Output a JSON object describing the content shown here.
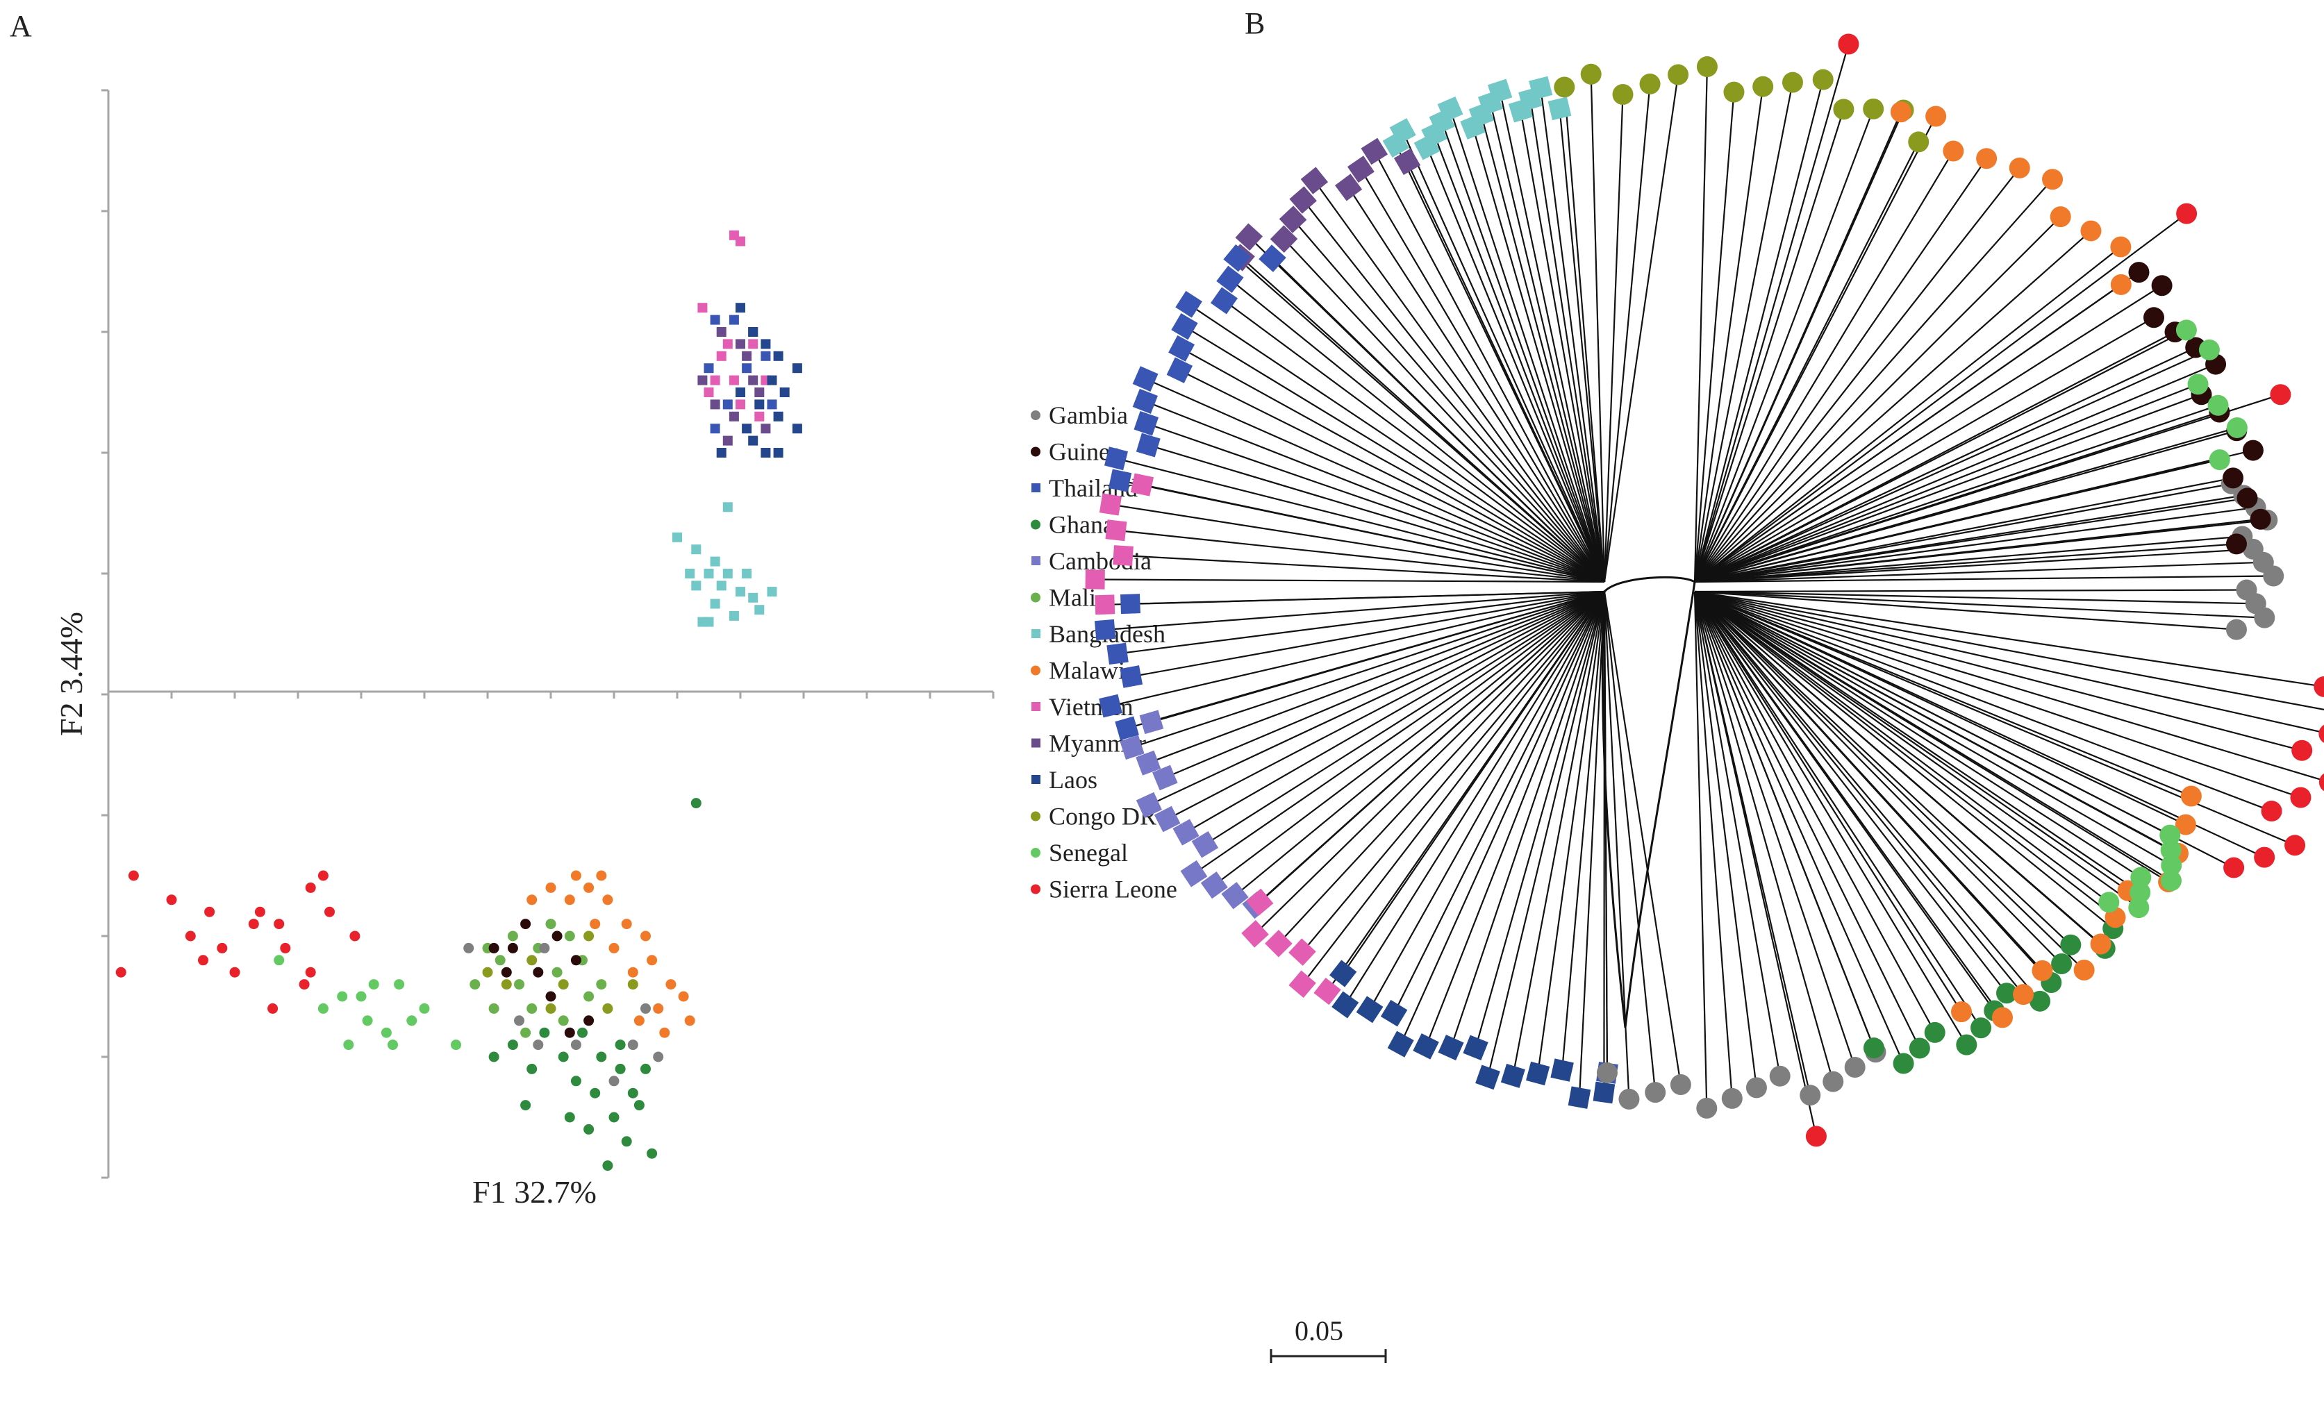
{
  "panels": {
    "a_label": "A",
    "b_label": "B"
  },
  "colors": {
    "Gambia": "#7f7f7f",
    "Guinea": "#2b0a0a",
    "Thailand": "#3a56b4",
    "Ghana": "#2e8b3d",
    "Cambodia": "#7878c8",
    "Mali": "#6ab04c",
    "Bangladesh": "#72c7c7",
    "Malawi": "#f07a2a",
    "Vietnam": "#e35db3",
    "Myanmar": "#6a4c8c",
    "Laos": "#24468c",
    "Congo DR": "#8a9a1e",
    "Senegal": "#63c963",
    "Sierra Leone": "#e8212a"
  },
  "legend": [
    {
      "label": "Gambia",
      "shape": "circle"
    },
    {
      "label": "Guinea",
      "shape": "circle"
    },
    {
      "label": "Thailand",
      "shape": "square"
    },
    {
      "label": "Ghana",
      "shape": "circle"
    },
    {
      "label": "Cambodia",
      "shape": "square"
    },
    {
      "label": "Mali",
      "shape": "circle"
    },
    {
      "label": "Bangladesh",
      "shape": "square"
    },
    {
      "label": "Malawi",
      "shape": "circle"
    },
    {
      "label": "Vietnam",
      "shape": "square"
    },
    {
      "label": "Myanmar",
      "shape": "square"
    },
    {
      "label": "Laos",
      "shape": "square"
    },
    {
      "label": "Congo DR",
      "shape": "circle"
    },
    {
      "label": "Senegal",
      "shape": "circle"
    },
    {
      "label": "Sierra Leone",
      "shape": "circle"
    }
  ],
  "chart_data": [
    {
      "type": "scatter",
      "title": "",
      "xlabel": "F1 32.7%",
      "ylabel": "F2 3.44%",
      "xlim": [
        -7,
        7
      ],
      "ylim": [
        -4,
        5
      ],
      "grid": false,
      "legend_position": "right",
      "series": [
        {
          "name": "Sierra Leone",
          "shape": "circle",
          "points": [
            [
              -6.6,
              -1.5
            ],
            [
              -6.0,
              -1.7
            ],
            [
              -5.4,
              -1.8
            ],
            [
              -4.6,
              -1.8
            ],
            [
              -3.8,
              -1.6
            ],
            [
              -3.6,
              -1.5
            ],
            [
              -6.8,
              -2.3
            ],
            [
              -5.5,
              -2.2
            ],
            [
              -5.2,
              -2.1
            ],
            [
              -4.7,
              -1.9
            ],
            [
              -4.3,
              -1.9
            ],
            [
              -3.5,
              -1.8
            ],
            [
              -5.0,
              -2.3
            ],
            [
              -4.2,
              -2.1
            ],
            [
              -5.7,
              -2.0
            ],
            [
              -3.9,
              -2.4
            ],
            [
              -3.1,
              -2.0
            ],
            [
              -4.4,
              -2.6
            ],
            [
              -3.8,
              -2.3
            ]
          ]
        },
        {
          "name": "Senegal",
          "shape": "circle",
          "points": [
            [
              -3.3,
              -2.5
            ],
            [
              -2.9,
              -2.7
            ],
            [
              -3.2,
              -2.9
            ],
            [
              -2.6,
              -2.8
            ],
            [
              -2.2,
              -2.7
            ],
            [
              -3.6,
              -2.6
            ],
            [
              -2.4,
              -2.4
            ],
            [
              -2.8,
              -2.4
            ],
            [
              -2.0,
              -2.6
            ],
            [
              -1.5,
              -2.9
            ],
            [
              -2.5,
              -2.9
            ],
            [
              -4.3,
              -2.2
            ],
            [
              -3.0,
              -2.5
            ]
          ]
        },
        {
          "name": "Mali",
          "shape": "circle",
          "points": [
            [
              -0.8,
              -2.2
            ],
            [
              -0.5,
              -2.4
            ],
            [
              -0.2,
              -2.1
            ],
            [
              0.1,
              -2.3
            ],
            [
              0.3,
              -2.0
            ],
            [
              0.6,
              -2.5
            ],
            [
              -0.6,
              -2.0
            ],
            [
              -0.3,
              -2.6
            ],
            [
              0.2,
              -2.7
            ],
            [
              0.5,
              -2.2
            ],
            [
              -0.9,
              -2.6
            ],
            [
              -1.2,
              -2.4
            ],
            [
              -0.4,
              -2.8
            ],
            [
              0.8,
              -2.4
            ],
            [
              0.0,
              -1.9
            ],
            [
              -1.0,
              -2.1
            ]
          ]
        },
        {
          "name": "Ghana",
          "shape": "circle",
          "points": [
            [
              0.5,
              -2.8
            ],
            [
              0.8,
              -3.0
            ],
            [
              1.1,
              -2.9
            ],
            [
              1.3,
              -3.3
            ],
            [
              1.0,
              -3.5
            ],
            [
              0.7,
              -3.3
            ],
            [
              1.5,
              -3.1
            ],
            [
              1.2,
              -3.7
            ],
            [
              0.9,
              -3.9
            ],
            [
              0.4,
              -3.2
            ],
            [
              1.4,
              -3.4
            ],
            [
              0.6,
              -3.6
            ],
            [
              1.6,
              -3.8
            ],
            [
              0.2,
              -3.0
            ],
            [
              -0.1,
              -2.8
            ],
            [
              -0.3,
              -3.1
            ],
            [
              -0.6,
              -2.9
            ],
            [
              -0.9,
              -3.0
            ],
            [
              -0.4,
              -3.4
            ],
            [
              1.1,
              -3.1
            ],
            [
              0.3,
              -3.5
            ],
            [
              2.3,
              -0.9
            ]
          ]
        },
        {
          "name": "Malawi",
          "shape": "circle",
          "points": [
            [
              1.0,
              -2.1
            ],
            [
              1.3,
              -2.3
            ],
            [
              1.6,
              -2.2
            ],
            [
              1.9,
              -2.4
            ],
            [
              2.1,
              -2.5
            ],
            [
              1.7,
              -2.6
            ],
            [
              1.4,
              -2.7
            ],
            [
              2.2,
              -2.7
            ],
            [
              0.9,
              -1.7
            ],
            [
              0.6,
              -1.6
            ],
            [
              0.3,
              -1.7
            ],
            [
              0.0,
              -1.6
            ],
            [
              -0.3,
              -1.7
            ],
            [
              1.2,
              -1.9
            ],
            [
              0.8,
              -1.5
            ],
            [
              1.8,
              -2.8
            ],
            [
              0.7,
              -1.9
            ],
            [
              0.4,
              -1.5
            ],
            [
              1.5,
              -2.0
            ]
          ]
        },
        {
          "name": "Guinea",
          "shape": "circle",
          "points": [
            [
              -0.9,
              -2.1
            ],
            [
              -0.6,
              -2.1
            ],
            [
              -0.4,
              -1.9
            ],
            [
              -0.7,
              -2.3
            ],
            [
              0.1,
              -2.0
            ],
            [
              0.4,
              -2.2
            ],
            [
              0.0,
              -2.5
            ],
            [
              -0.2,
              -2.3
            ],
            [
              0.6,
              -2.7
            ],
            [
              0.3,
              -2.8
            ]
          ]
        },
        {
          "name": "Gambia",
          "shape": "circle",
          "points": [
            [
              -1.3,
              -2.1
            ],
            [
              -0.1,
              -2.1
            ],
            [
              0.4,
              -2.9
            ],
            [
              1.3,
              -2.9
            ],
            [
              1.7,
              -3.0
            ],
            [
              1.0,
              -3.2
            ],
            [
              -0.5,
              -2.7
            ],
            [
              1.5,
              -2.6
            ],
            [
              -0.2,
              -2.9
            ]
          ]
        },
        {
          "name": "Congo DR",
          "shape": "circle",
          "points": [
            [
              -0.7,
              -2.4
            ],
            [
              -0.3,
              -2.2
            ],
            [
              0.2,
              -2.4
            ],
            [
              0.6,
              -2.0
            ],
            [
              0.9,
              -2.6
            ],
            [
              -1.0,
              -2.3
            ],
            [
              1.3,
              -2.4
            ],
            [
              0.0,
              -2.6
            ]
          ]
        },
        {
          "name": "Vietnam",
          "shape": "square",
          "points": [
            [
              2.9,
              3.8
            ],
            [
              3.0,
              3.75
            ],
            [
              2.4,
              3.2
            ],
            [
              2.7,
              2.8
            ],
            [
              3.2,
              2.9
            ],
            [
              2.5,
              2.5
            ],
            [
              3.0,
              2.4
            ],
            [
              3.4,
              2.6
            ],
            [
              2.8,
              2.9
            ],
            [
              2.6,
              2.6
            ],
            [
              3.3,
              2.3
            ],
            [
              2.9,
              2.6
            ]
          ]
        },
        {
          "name": "Thailand",
          "shape": "square",
          "points": [
            [
              2.6,
              3.1
            ],
            [
              2.9,
              3.1
            ],
            [
              3.2,
              3.0
            ],
            [
              3.4,
              2.8
            ],
            [
              2.5,
              2.7
            ],
            [
              3.1,
              2.7
            ],
            [
              2.8,
              2.4
            ],
            [
              3.5,
              2.4
            ],
            [
              2.6,
              2.2
            ]
          ]
        },
        {
          "name": "Myanmar",
          "shape": "square",
          "points": [
            [
              2.7,
              3.0
            ],
            [
              3.0,
              2.9
            ],
            [
              3.2,
              2.6
            ],
            [
              2.6,
              2.4
            ],
            [
              2.9,
              2.3
            ],
            [
              3.3,
              2.5
            ],
            [
              2.8,
              2.1
            ],
            [
              3.1,
              2.8
            ],
            [
              2.4,
              2.6
            ],
            [
              3.4,
              2.2
            ]
          ]
        },
        {
          "name": "Laos",
          "shape": "square",
          "points": [
            [
              3.0,
              3.2
            ],
            [
              3.2,
              3.0
            ],
            [
              3.4,
              2.9
            ],
            [
              3.6,
              2.8
            ],
            [
              3.9,
              2.7
            ],
            [
              3.7,
              2.5
            ],
            [
              3.5,
              2.6
            ],
            [
              3.3,
              2.4
            ],
            [
              3.6,
              2.3
            ],
            [
              3.9,
              2.2
            ],
            [
              3.2,
              2.1
            ],
            [
              3.6,
              2.0
            ],
            [
              3.0,
              2.5
            ],
            [
              3.1,
              2.2
            ],
            [
              2.7,
              2.0
            ],
            [
              3.4,
              2.0
            ]
          ]
        },
        {
          "name": "Bangladesh",
          "shape": "square",
          "points": [
            [
              2.0,
              1.3
            ],
            [
              2.3,
              1.2
            ],
            [
              2.6,
              1.1
            ],
            [
              2.2,
              1.0
            ],
            [
              2.5,
              1.0
            ],
            [
              2.8,
              1.0
            ],
            [
              3.1,
              1.0
            ],
            [
              2.3,
              0.9
            ],
            [
              2.7,
              0.9
            ],
            [
              3.0,
              0.85
            ],
            [
              3.5,
              0.85
            ],
            [
              2.6,
              0.75
            ],
            [
              3.2,
              0.8
            ],
            [
              2.9,
              0.65
            ],
            [
              3.3,
              0.7
            ],
            [
              2.5,
              0.6
            ],
            [
              2.8,
              1.55
            ],
            [
              2.4,
              0.6
            ]
          ]
        }
      ]
    },
    {
      "type": "other",
      "title": "",
      "scale_bar_label": "0.05",
      "clades": [
        {
          "country": "Sierra Leone",
          "from_deg": 75,
          "to_deg": 75,
          "count": 1
        },
        {
          "country": "Congo DR",
          "from_deg": 65,
          "to_deg": 102,
          "count": 14
        },
        {
          "country": "Malawi",
          "from_deg": 38,
          "to_deg": 68,
          "count": 10
        },
        {
          "country": "Bangladesh",
          "from_deg": 103,
          "to_deg": 120,
          "count": 14
        },
        {
          "country": "Myanmar",
          "from_deg": 120,
          "to_deg": 140,
          "count": 10
        },
        {
          "country": "Thailand",
          "from_deg": 138,
          "to_deg": 168,
          "count": 14
        },
        {
          "country": "Vietnam",
          "from_deg": 168,
          "to_deg": 182,
          "count": 6
        },
        {
          "country": "Thailand",
          "from_deg": 182,
          "to_deg": 196,
          "count": 6
        },
        {
          "country": "Cambodia",
          "from_deg": 196,
          "to_deg": 220,
          "count": 12
        },
        {
          "country": "Vietnam",
          "from_deg": 220,
          "to_deg": 232,
          "count": 6
        },
        {
          "country": "Laos",
          "from_deg": 232,
          "to_deg": 262,
          "count": 14
        },
        {
          "country": "Thailand",
          "from_deg": 262,
          "to_deg": 264,
          "count": 1
        },
        {
          "country": "Gambia",
          "from_deg": 262,
          "to_deg": 290,
          "count": 12
        },
        {
          "country": "Sierra Leone",
          "from_deg": 282,
          "to_deg": 282,
          "count": 1
        },
        {
          "country": "Ghana",
          "from_deg": 290,
          "to_deg": 318,
          "count": 14
        },
        {
          "country": "Malawi",
          "from_deg": 300,
          "to_deg": 335,
          "count": 12
        },
        {
          "country": "Senegal",
          "from_deg": 320,
          "to_deg": 330,
          "count": 8
        },
        {
          "country": "Sierra Leone",
          "from_deg": 330,
          "to_deg": 350,
          "count": 10
        },
        {
          "country": "Gambia",
          "from_deg": 355,
          "to_deg": 372,
          "count": 12
        },
        {
          "country": "Guinea",
          "from_deg": 5,
          "to_deg": 38,
          "count": 14
        },
        {
          "country": "Senegal",
          "from_deg": 15,
          "to_deg": 30,
          "count": 6
        },
        {
          "country": "Sierra Leone",
          "from_deg": 20,
          "to_deg": 40,
          "count": 2
        }
      ]
    }
  ]
}
